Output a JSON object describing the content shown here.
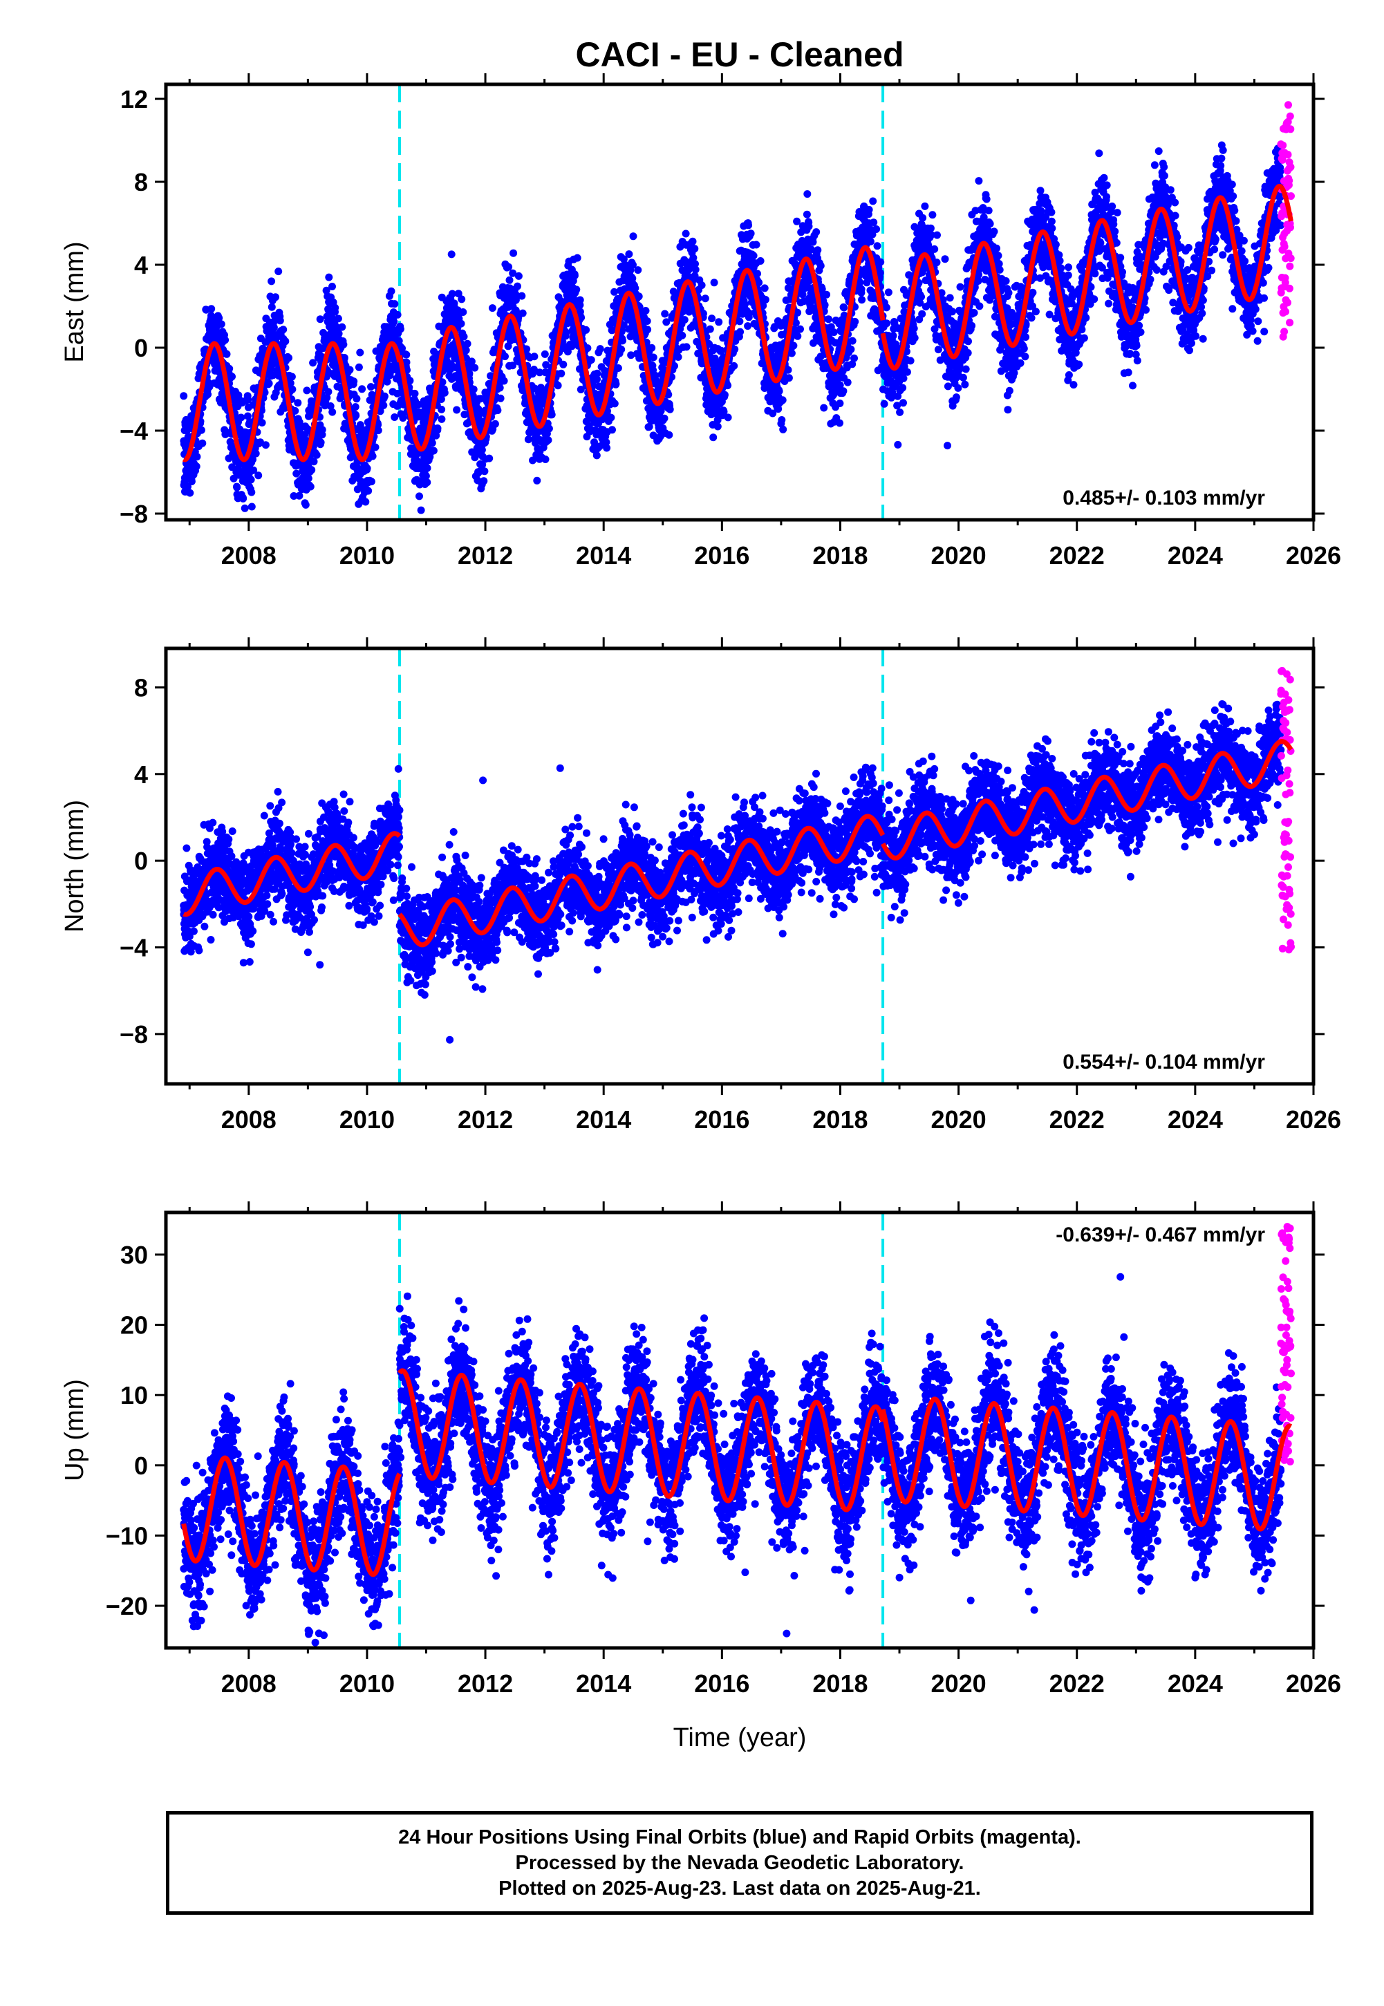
{
  "title": "CACI  - EU - Cleaned",
  "x_axis_label": "Time (year)",
  "footer": {
    "lines": [
      "24 Hour Positions Using Final Orbits (blue) and Rapid Orbits (magenta).",
      "Processed by the Nevada Geodetic Laboratory.",
      "Plotted on 2025-Aug-23. Last data on 2025-Aug-21."
    ]
  },
  "colors": {
    "final_orbits": "#0000ff",
    "rapid_orbits": "#ff00ff",
    "model": "#ff0000",
    "equipment_change": "#00e5ee"
  },
  "chart_data": [
    {
      "type": "scatter",
      "component": "east",
      "ylabel": "East (mm)",
      "xlim": [
        2006.6,
        2026.0
      ],
      "ylim": [
        -8.3,
        12.7
      ],
      "xticks": [
        2008,
        2010,
        2012,
        2014,
        2016,
        2018,
        2020,
        2022,
        2024,
        2026
      ],
      "yticks": [
        -8,
        -4,
        0,
        4,
        8,
        12
      ],
      "rate_label": "0.485+/- 0.103 mm/yr",
      "rate_position": "bottom-right",
      "equipment_changes": [
        2010.55,
        2018.72
      ],
      "model": {
        "segments": [
          {
            "start": 2006.9,
            "end": 2010.55,
            "intercept": -2.6,
            "trend": 0.0,
            "annual_amp": 2.8,
            "annual_phase_peak": 0.42
          },
          {
            "start": 2010.55,
            "end": 2018.72,
            "intercept": -2.3,
            "trend": 0.55,
            "annual_amp": 2.8,
            "annual_phase_peak": 0.42
          },
          {
            "start": 2018.72,
            "end": 2025.62,
            "intercept": 1.5,
            "trend": 0.55,
            "annual_amp": 2.6,
            "annual_phase_peak": 0.42
          }
        ]
      },
      "samples": {
        "start": 2006.9,
        "end": 2025.45,
        "noise_mm": 1.1
      },
      "rapid_samples": {
        "start": 2025.45,
        "end": 2025.62,
        "y_range": [
          0.5,
          12.3
        ]
      }
    },
    {
      "type": "scatter",
      "component": "north",
      "ylabel": "North (mm)",
      "xlim": [
        2006.6,
        2026.0
      ],
      "ylim": [
        -10.3,
        9.8
      ],
      "xticks": [
        2008,
        2010,
        2012,
        2014,
        2016,
        2018,
        2020,
        2022,
        2024,
        2026
      ],
      "yticks": [
        -8,
        -4,
        0,
        4,
        8
      ],
      "rate_label": "0.554+/- 0.104 mm/yr",
      "rate_position": "bottom-right",
      "equipment_changes": [
        2010.55,
        2018.72
      ],
      "model": {
        "segments": [
          {
            "start": 2006.9,
            "end": 2010.55,
            "intercept": -1.6,
            "trend": 0.55,
            "annual_amp": 0.9,
            "annual_phase_peak": 0.45
          },
          {
            "start": 2010.55,
            "end": 2018.72,
            "intercept": -3.2,
            "trend": 0.55,
            "annual_amp": 0.9,
            "annual_phase_peak": 0.45
          },
          {
            "start": 2018.72,
            "end": 2025.62,
            "intercept": 0.9,
            "trend": 0.55,
            "annual_amp": 0.9,
            "annual_phase_peak": 0.45
          }
        ]
      },
      "samples": {
        "start": 2006.9,
        "end": 2025.45,
        "noise_mm": 1.0
      },
      "rapid_samples": {
        "start": 2025.45,
        "end": 2025.62,
        "y_range": [
          -4.3,
          9.3
        ]
      }
    },
    {
      "type": "scatter",
      "component": "up",
      "ylabel": "Up (mm)",
      "xlim": [
        2006.6,
        2026.0
      ],
      "ylim": [
        -26,
        36
      ],
      "xticks": [
        2008,
        2010,
        2012,
        2014,
        2016,
        2018,
        2020,
        2022,
        2024,
        2026
      ],
      "yticks": [
        -20,
        -10,
        0,
        10,
        20,
        30
      ],
      "rate_label": "-0.639+/- 0.467 mm/yr",
      "rate_position": "top-right",
      "equipment_changes": [
        2010.55,
        2018.72
      ],
      "model": {
        "segments": [
          {
            "start": 2006.9,
            "end": 2010.55,
            "intercept": -6.0,
            "trend": -0.64,
            "annual_amp": 7.5,
            "annual_phase_peak": 0.6
          },
          {
            "start": 2010.55,
            "end": 2018.72,
            "intercept": 6.0,
            "trend": -0.64,
            "annual_amp": 7.5,
            "annual_phase_peak": 0.6
          },
          {
            "start": 2018.72,
            "end": 2025.62,
            "intercept": 2.5,
            "trend": -0.64,
            "annual_amp": 7.5,
            "annual_phase_peak": 0.6
          }
        ]
      },
      "samples": {
        "start": 2006.9,
        "end": 2025.45,
        "noise_mm": 4.2
      },
      "rapid_samples": {
        "start": 2025.45,
        "end": 2025.62,
        "y_range": [
          0,
          35
        ]
      }
    }
  ]
}
